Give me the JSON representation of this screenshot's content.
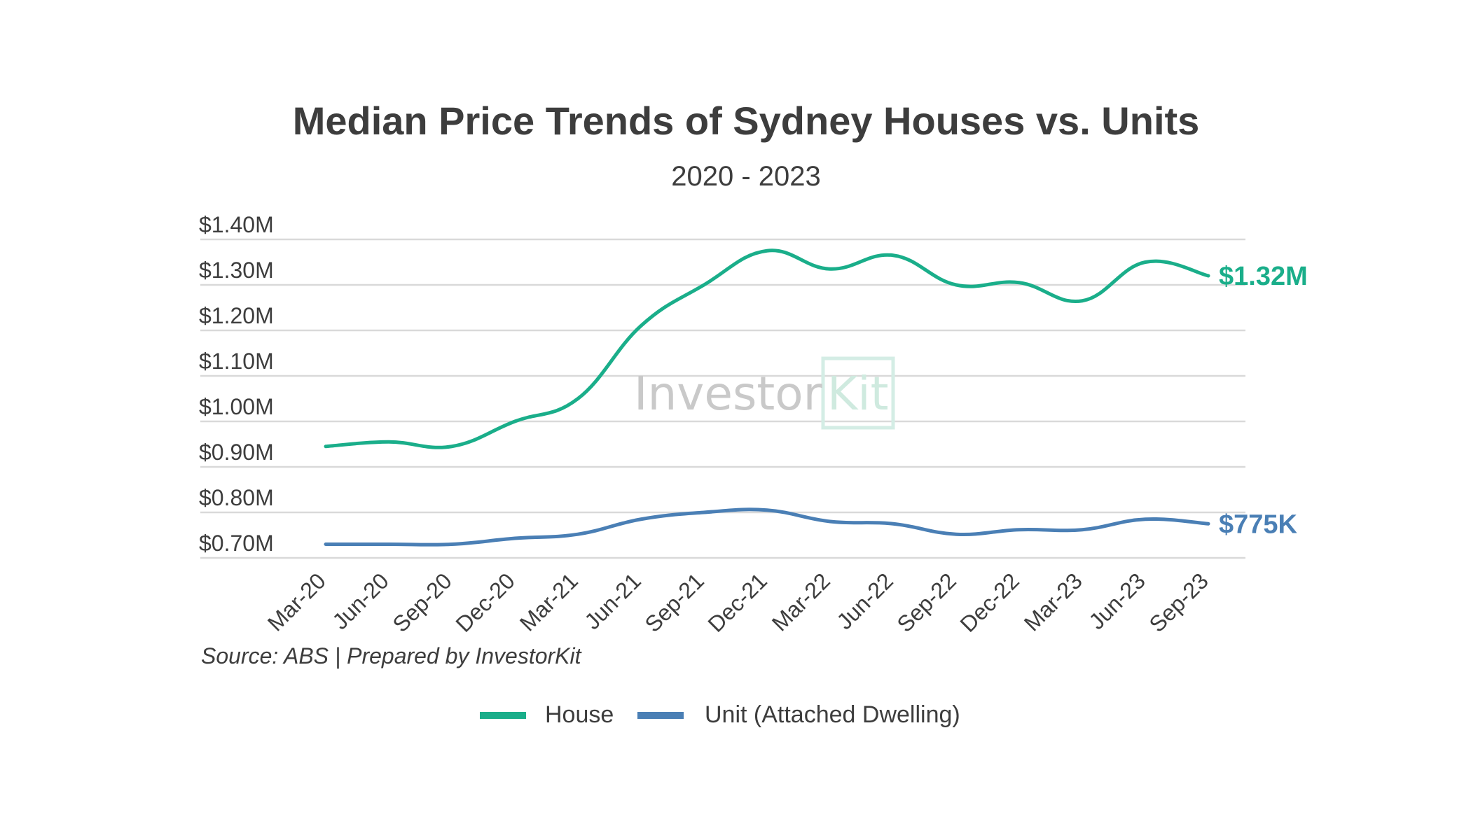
{
  "chart_data": {
    "type": "line",
    "title": "Median Price Trends of Sydney Houses vs. Units",
    "subtitle": "2020 - 2023",
    "xlabel": "",
    "ylabel": "",
    "ylim": [
      0.7,
      1.4
    ],
    "ytick_values": [
      0.7,
      0.8,
      0.9,
      1.0,
      1.1,
      1.2,
      1.3,
      1.4
    ],
    "yticks": [
      "$0.70M",
      "$0.80M",
      "$0.90M",
      "$1.00M",
      "$1.10M",
      "$1.20M",
      "$1.30M",
      "$1.40M"
    ],
    "categories": [
      "Mar-20",
      "Jun-20",
      "Sep-20",
      "Dec-20",
      "Mar-21",
      "Jun-21",
      "Sep-21",
      "Dec-21",
      "Mar-22",
      "Jun-22",
      "Sep-22",
      "Dec-22",
      "Mar-23",
      "Jun-23",
      "Sep-23"
    ],
    "series": [
      {
        "name": "House",
        "color": "#1aae8a",
        "values": [
          0.945,
          0.955,
          0.945,
          1.0,
          1.05,
          1.21,
          1.3,
          1.375,
          1.335,
          1.365,
          1.3,
          1.305,
          1.265,
          1.35,
          1.32
        ],
        "end_label": "$1.32M"
      },
      {
        "name": "Unit (Attached Dwelling)",
        "color": "#4a7fb5",
        "values": [
          0.73,
          0.73,
          0.73,
          0.743,
          0.752,
          0.785,
          0.8,
          0.805,
          0.78,
          0.775,
          0.752,
          0.762,
          0.762,
          0.785,
          0.775
        ],
        "end_label": "$775K"
      }
    ],
    "source": "Source: ABS | Prepared by InvestorKit",
    "watermark": {
      "left": "Investor",
      "right": "Kit"
    },
    "grid": true,
    "legend": "bottom-center"
  }
}
